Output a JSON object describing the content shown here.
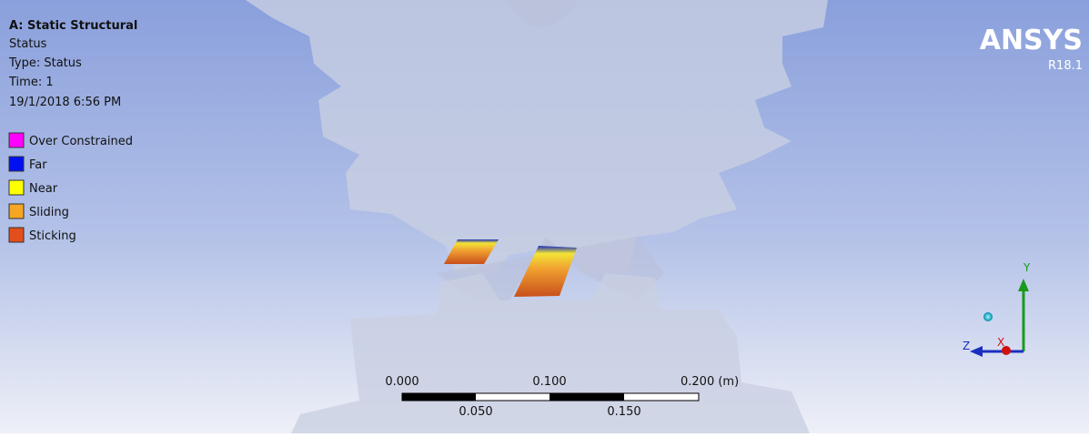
{
  "header": {
    "title": "A: Static Structural",
    "lines": [
      "Status",
      "Type: Status",
      "Time: 1",
      "19/1/2018 6:56 PM"
    ]
  },
  "legend": {
    "items": [
      "Over Constrained",
      "Far",
      "Near",
      "Sliding",
      "Sticking"
    ]
  },
  "logo": {
    "name": "ANSYS",
    "version": "R18.1"
  },
  "scale_bar": {
    "top_labels": [
      "0.000",
      "0.100",
      "0.200 (m)"
    ],
    "bottom_labels": [
      "0.050",
      "0.150"
    ]
  },
  "triad": {
    "y": "Y",
    "z": "Z",
    "x": "X"
  }
}
